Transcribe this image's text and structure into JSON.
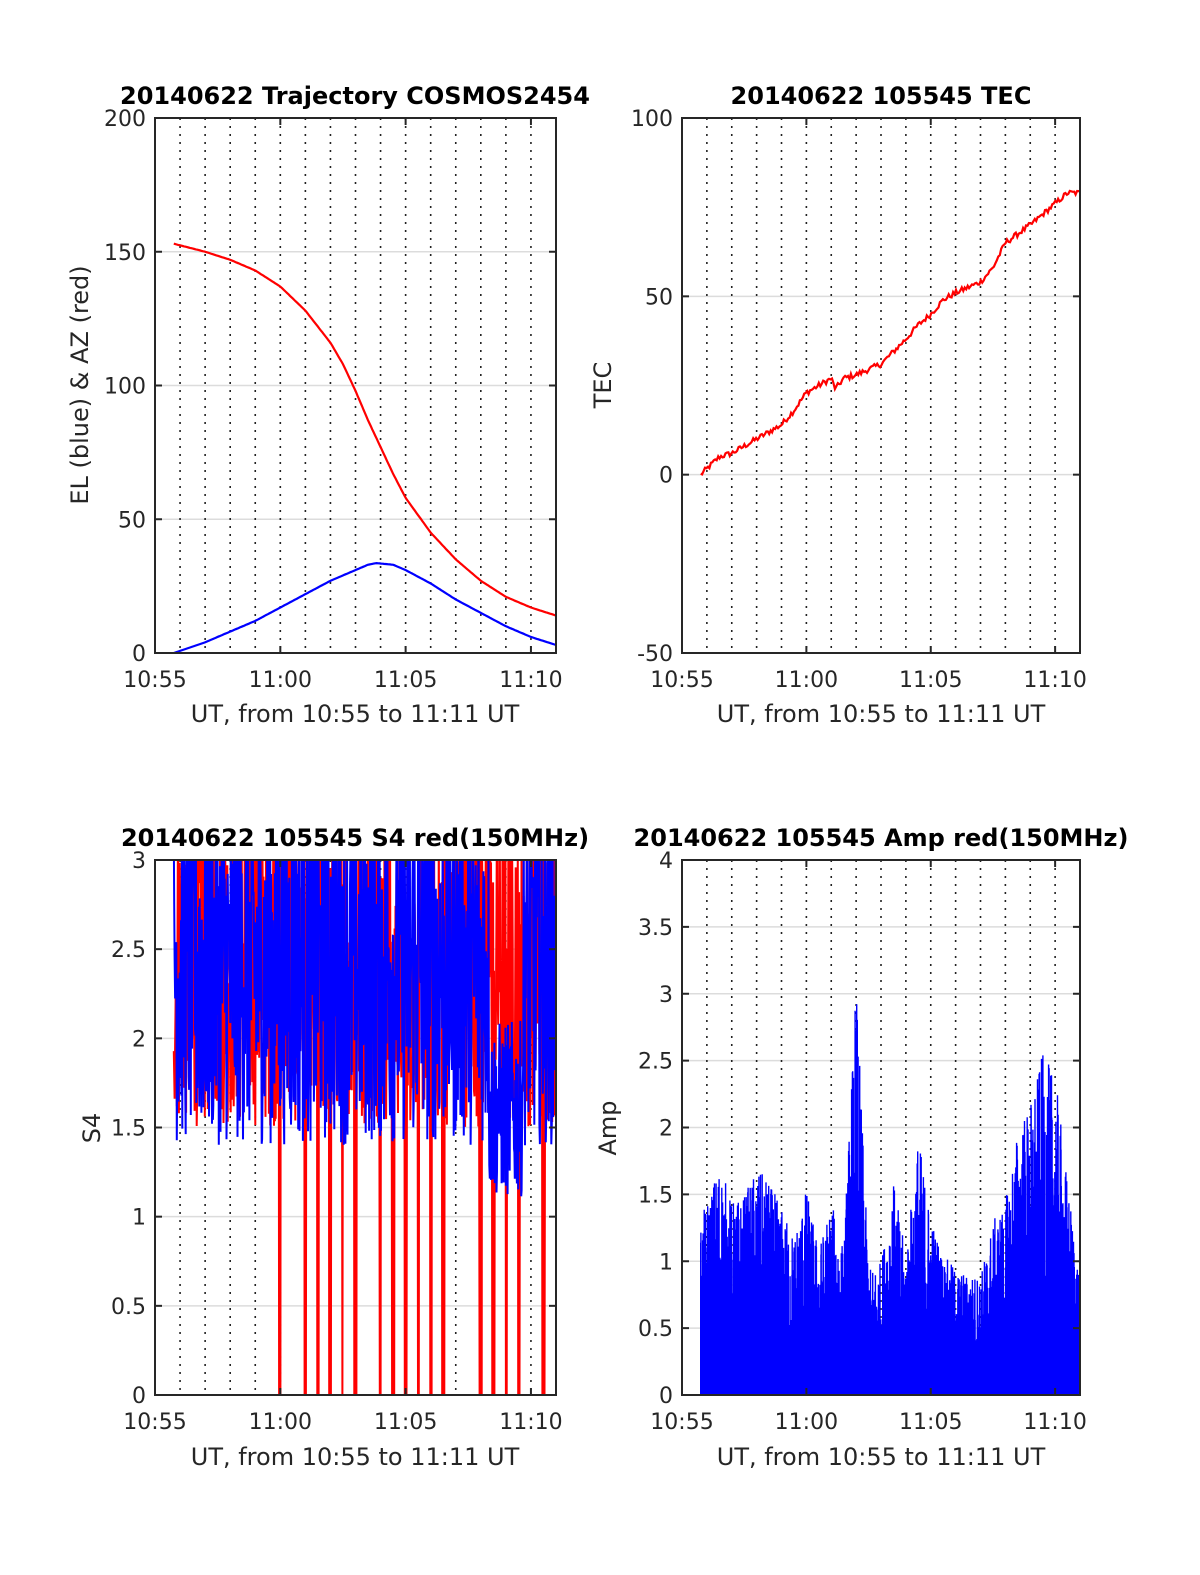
{
  "figure": {
    "background": "#ffffff"
  },
  "chart_data": [
    {
      "id": "traj",
      "type": "line",
      "title": "20140622 Trajectory COSMOS2454",
      "xlabel": "UT, from 10:55 to 11:11 UT",
      "ylabel": "EL (blue) & AZ (red)",
      "xlim": [
        "10:55",
        "11:11"
      ],
      "ylim": [
        0,
        200
      ],
      "yticks": [
        0,
        50,
        100,
        150,
        200
      ],
      "ytick_labels": [
        "0",
        "50",
        "100",
        "150",
        "200"
      ],
      "xticks": [
        "10:55",
        "11:00",
        "11:05",
        "11:10"
      ],
      "grid": "dotted vertical every minute, light horizontal at y ticks",
      "series": [
        {
          "color": "#ff0000",
          "x": [
            "10:55:45",
            "10:57:00",
            "10:58:00",
            "10:59:00",
            "11:00:00",
            "11:01:00",
            "11:02:00",
            "11:02:30",
            "11:03:00",
            "11:03:30",
            "11:04:00",
            "11:04:30",
            "11:05:00",
            "11:06:00",
            "11:07:00",
            "11:08:00",
            "11:09:00",
            "11:10:00",
            "11:11:00"
          ],
          "values": [
            153,
            150,
            147,
            143,
            137,
            128,
            116,
            108,
            98,
            87,
            77,
            67,
            58,
            45,
            35,
            27,
            21,
            17,
            14
          ]
        },
        {
          "color": "#0000ff",
          "x": [
            "10:55:45",
            "10:57:00",
            "10:58:00",
            "10:59:00",
            "11:00:00",
            "11:01:00",
            "11:02:00",
            "11:03:00",
            "11:03:30",
            "11:03:50",
            "11:04:30",
            "11:05:00",
            "11:06:00",
            "11:07:00",
            "11:08:00",
            "11:09:00",
            "11:10:00",
            "11:11:00"
          ],
          "values": [
            0,
            4,
            8,
            12,
            17,
            22,
            27,
            31,
            33,
            33.6,
            33,
            31,
            26,
            20,
            15,
            10,
            6,
            3
          ]
        }
      ]
    },
    {
      "id": "tec",
      "type": "line",
      "title": "20140622 105545 TEC",
      "xlabel": "UT, from 10:55 to 11:11 UT",
      "ylabel": "TEC",
      "xlim": [
        "10:55",
        "11:11"
      ],
      "ylim": [
        -50,
        100
      ],
      "yticks": [
        -50,
        0,
        50,
        100
      ],
      "ytick_labels": [
        "-50",
        "0",
        "50",
        "100"
      ],
      "xticks": [
        "10:55",
        "11:00",
        "11:05",
        "11:10"
      ],
      "grid": "dotted vertical every minute, light horizontal at y ticks",
      "series": [
        {
          "color": "#ff0000",
          "x": [
            "10:55:45",
            "10:56:30",
            "10:57:00",
            "10:57:30",
            "10:58:00",
            "10:59:00",
            "10:59:30",
            "11:00:00",
            "11:00:30",
            "11:01:00",
            "11:01:10",
            "11:01:30",
            "11:02:00",
            "11:03:00",
            "11:04:00",
            "11:04:30",
            "11:05:00",
            "11:05:30",
            "11:06:00",
            "11:07:00",
            "11:07:30",
            "11:08:00",
            "11:09:00",
            "11:10:00",
            "11:10:30",
            "11:11:00"
          ],
          "values": [
            0,
            5,
            6,
            8,
            10,
            14,
            18,
            23,
            25,
            27,
            24,
            27,
            28,
            31,
            38,
            42,
            45,
            49,
            51,
            54,
            58,
            65,
            70,
            76,
            79,
            79
          ]
        }
      ]
    },
    {
      "id": "s4",
      "type": "line",
      "title": "20140622 105545 S4 red(150MHz)",
      "xlabel": "UT, from 10:55 to 11:11 UT",
      "ylabel": "S4",
      "xlim": [
        "10:55",
        "11:11"
      ],
      "ylim": [
        0,
        3
      ],
      "yticks": [
        0,
        0.5,
        1,
        1.5,
        2,
        2.5,
        3
      ],
      "ytick_labels": [
        "0",
        "0.5",
        "1",
        "1.5",
        "2",
        "2.5",
        "3"
      ],
      "xticks": [
        "10:55",
        "11:00",
        "11:05",
        "11:10"
      ],
      "grid": "dotted vertical every minute, light horizontal at y ticks",
      "series": [
        {
          "color": "#ff0000",
          "start": "10:55:45",
          "end": "11:11",
          "description_values": {
            "typical_range": [
              1.5,
              3
            ],
            "drops_to_zero_at": [
              "11:00",
              "11:01",
              "11:01:30",
              "11:02",
              "11:02:30",
              "11:03",
              "11:04",
              "11:04:30",
              "11:05",
              "11:05:30",
              "11:06",
              "11:06:30",
              "11:08",
              "11:08:30",
              "11:09",
              "11:09:30",
              "11:10:30"
            ]
          }
        },
        {
          "color": "#0000ff",
          "start": "10:55:45",
          "end": "11:11",
          "description_values": {
            "typical_range": [
              1.4,
              3
            ],
            "late_dip_range": [
              1.1,
              1.6
            ],
            "late_dip_window": [
              "11:08:20",
              "11:09:40"
            ]
          }
        }
      ]
    },
    {
      "id": "amp",
      "type": "line",
      "title": "20140622 105545 Amp red(150MHz)",
      "xlabel": "UT, from 10:55 to 11:11 UT",
      "ylabel": "Amp",
      "xlim": [
        "10:55",
        "11:11"
      ],
      "ylim": [
        0,
        4
      ],
      "yticks": [
        0,
        0.5,
        1,
        1.5,
        2,
        2.5,
        3,
        3.5,
        4
      ],
      "ytick_labels": [
        "0",
        "0.5",
        "1",
        "1.5",
        "2",
        "2.5",
        "3",
        "3.5",
        "4"
      ],
      "xticks": [
        "10:55",
        "11:00",
        "11:05",
        "11:10"
      ],
      "grid": "dotted vertical every minute, light horizontal at y ticks",
      "series": [
        {
          "color": "#0000ff",
          "start": "10:55:45",
          "end": "11:11",
          "envelope_x": [
            "10:55:45",
            "10:56:30",
            "10:57:00",
            "10:57:30",
            "10:58:00",
            "10:58:30",
            "10:59:00",
            "10:59:30",
            "11:00:00",
            "11:00:30",
            "11:01:00",
            "11:01:30",
            "11:02:00",
            "11:02:30",
            "11:03:00",
            "11:03:30",
            "11:04:00",
            "11:04:30",
            "11:05:00",
            "11:05:30",
            "11:06:00",
            "11:06:30",
            "11:07:00",
            "11:07:30",
            "11:08:00",
            "11:08:30",
            "11:09:00",
            "11:09:30",
            "11:10:00",
            "11:10:30",
            "11:11:00"
          ],
          "envelope_max": [
            1.3,
            1.75,
            1.45,
            1.5,
            1.7,
            1.6,
            1.4,
            1.2,
            1.55,
            1.1,
            1.45,
            1.1,
            3.1,
            0.95,
            1.0,
            1.6,
            1.05,
            1.95,
            1.35,
            1.05,
            0.95,
            0.9,
            0.9,
            1.3,
            1.45,
            2.0,
            2.2,
            2.55,
            2.4,
            1.6,
            0.9
          ]
        }
      ]
    }
  ]
}
